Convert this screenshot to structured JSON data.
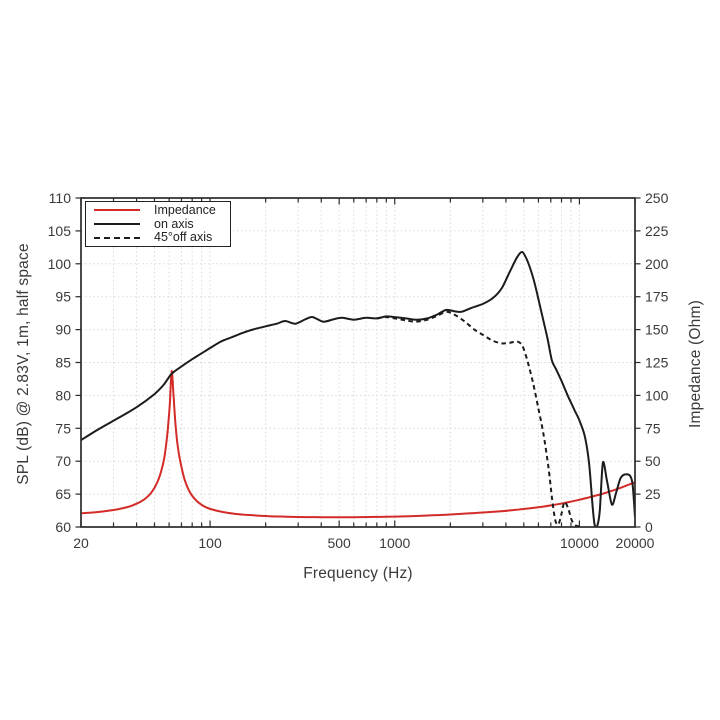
{
  "figure": {
    "background": "#ffffff",
    "axis_color": "#2b2b2b",
    "grid_color": "#dadada",
    "text_color": "#3a3a3a",
    "accent_red": "#d32b28",
    "curve_black": "#1c1c1c"
  },
  "legend": {
    "items": [
      {
        "label": "Impedance",
        "series": "impedance",
        "style": "solid",
        "color": "#d32b28"
      },
      {
        "label": "on axis",
        "series": "on_axis",
        "style": "solid",
        "color": "#1c1c1c"
      },
      {
        "label": "45°off axis",
        "series": "off_axis",
        "style": "dashed",
        "color": "#1c1c1c"
      }
    ]
  },
  "chart_data": {
    "type": "line",
    "title": "",
    "xlabel": "Frequency (Hz)",
    "ylabel_left": "SPL (dB) @ 2.83V, 1m, half space",
    "ylabel_right": "Impedance (Ohm)",
    "x_scale": "log",
    "x_range": [
      20,
      20000
    ],
    "x_major_ticks": [
      20,
      100,
      500,
      1000,
      10000,
      20000
    ],
    "x_minor_ticks": [
      30,
      40,
      50,
      60,
      70,
      80,
      90,
      200,
      300,
      400,
      600,
      700,
      800,
      900,
      2000,
      3000,
      4000,
      5000,
      6000,
      7000,
      8000,
      9000
    ],
    "y_left_range": [
      60,
      110
    ],
    "y_left_ticks": [
      60,
      65,
      70,
      75,
      80,
      85,
      90,
      95,
      100,
      105,
      110
    ],
    "y_right_range": [
      0,
      250
    ],
    "y_right_ticks": [
      0,
      25,
      50,
      75,
      100,
      125,
      150,
      175,
      200,
      225,
      250
    ],
    "grid": true,
    "legend_position": "top-left",
    "series": [
      {
        "name": "impedance",
        "axis": "right",
        "color": "#d32b28",
        "dash": "solid",
        "unit": "Ohm",
        "points": [
          [
            20,
            10.3
          ],
          [
            24,
            11.2
          ],
          [
            28,
            12.3
          ],
          [
            32,
            13.6
          ],
          [
            36,
            15.3
          ],
          [
            40,
            17.7
          ],
          [
            44,
            21.0
          ],
          [
            48,
            26.0
          ],
          [
            52,
            34.5
          ],
          [
            55,
            45.0
          ],
          [
            57,
            56.0
          ],
          [
            59,
            74.0
          ],
          [
            60.5,
            93.0
          ],
          [
            62,
            118.5
          ],
          [
            63.5,
            98.0
          ],
          [
            65,
            78.0
          ],
          [
            67,
            60.0
          ],
          [
            70,
            45.5
          ],
          [
            73,
            35.5
          ],
          [
            77,
            27.5
          ],
          [
            82,
            21.8
          ],
          [
            88,
            17.8
          ],
          [
            95,
            15.0
          ],
          [
            105,
            12.9
          ],
          [
            118,
            11.3
          ],
          [
            135,
            10.1
          ],
          [
            155,
            9.3
          ],
          [
            180,
            8.7
          ],
          [
            210,
            8.2
          ],
          [
            250,
            7.9
          ],
          [
            300,
            7.6
          ],
          [
            370,
            7.5
          ],
          [
            450,
            7.4
          ],
          [
            550,
            7.4
          ],
          [
            650,
            7.5
          ],
          [
            800,
            7.7
          ],
          [
            1000,
            7.9
          ],
          [
            1250,
            8.3
          ],
          [
            1600,
            8.9
          ],
          [
            2000,
            9.5
          ],
          [
            2500,
            10.3
          ],
          [
            3000,
            11.0
          ],
          [
            3600,
            11.8
          ],
          [
            4300,
            12.7
          ],
          [
            5100,
            13.8
          ],
          [
            6000,
            15.0
          ],
          [
            7000,
            16.4
          ],
          [
            8200,
            18.1
          ],
          [
            9500,
            20.0
          ],
          [
            11000,
            22.1
          ],
          [
            13000,
            24.8
          ],
          [
            15000,
            27.5
          ],
          [
            17000,
            30.2
          ],
          [
            20000,
            34.0
          ]
        ]
      },
      {
        "name": "on_axis",
        "axis": "left",
        "color": "#1c1c1c",
        "dash": "solid",
        "unit": "dB",
        "points": [
          [
            20,
            73.2
          ],
          [
            25,
            74.9
          ],
          [
            32,
            76.6
          ],
          [
            40,
            78.2
          ],
          [
            50,
            80.2
          ],
          [
            56,
            81.6
          ],
          [
            62,
            83.3
          ],
          [
            70,
            84.4
          ],
          [
            80,
            85.5
          ],
          [
            90,
            86.4
          ],
          [
            100,
            87.2
          ],
          [
            115,
            88.2
          ],
          [
            130,
            88.8
          ],
          [
            150,
            89.5
          ],
          [
            170,
            90.0
          ],
          [
            200,
            90.5
          ],
          [
            230,
            90.9
          ],
          [
            255,
            91.3
          ],
          [
            290,
            90.9
          ],
          [
            330,
            91.6
          ],
          [
            360,
            91.9
          ],
          [
            410,
            91.2
          ],
          [
            470,
            91.6
          ],
          [
            520,
            91.8
          ],
          [
            600,
            91.5
          ],
          [
            700,
            91.8
          ],
          [
            800,
            91.7
          ],
          [
            900,
            92.0
          ],
          [
            1000,
            91.9
          ],
          [
            1150,
            91.7
          ],
          [
            1300,
            91.5
          ],
          [
            1500,
            91.7
          ],
          [
            1700,
            92.3
          ],
          [
            1900,
            93.0
          ],
          [
            2100,
            92.8
          ],
          [
            2300,
            92.7
          ],
          [
            2600,
            93.3
          ],
          [
            3000,
            93.9
          ],
          [
            3400,
            94.8
          ],
          [
            3800,
            96.3
          ],
          [
            4200,
            98.8
          ],
          [
            4600,
            101.0
          ],
          [
            4900,
            101.8
          ],
          [
            5200,
            100.6
          ],
          [
            5600,
            98.0
          ],
          [
            5900,
            95.5
          ],
          [
            6300,
            92.0
          ],
          [
            6700,
            88.8
          ],
          [
            7100,
            85.3
          ],
          [
            7500,
            83.9
          ],
          [
            8000,
            82.2
          ],
          [
            8700,
            79.8
          ],
          [
            9400,
            77.8
          ],
          [
            10000,
            76.2
          ],
          [
            10700,
            73.8
          ],
          [
            11300,
            69.5
          ],
          [
            11800,
            63.0
          ],
          [
            12100,
            60.3
          ],
          [
            12500,
            60.2
          ],
          [
            12900,
            62.5
          ],
          [
            13400,
            69.8
          ],
          [
            14100,
            67.0
          ],
          [
            15000,
            63.4
          ],
          [
            15800,
            65.2
          ],
          [
            16700,
            67.4
          ],
          [
            17700,
            68.0
          ],
          [
            18800,
            67.8
          ],
          [
            19400,
            66.5
          ],
          [
            20000,
            61.5
          ]
        ]
      },
      {
        "name": "off_axis",
        "axis": "left",
        "color": "#1c1c1c",
        "dash": "dashed",
        "unit": "dB",
        "points": [
          [
            800,
            91.7
          ],
          [
            900,
            91.9
          ],
          [
            1000,
            91.7
          ],
          [
            1150,
            91.4
          ],
          [
            1300,
            91.2
          ],
          [
            1500,
            91.5
          ],
          [
            1700,
            92.1
          ],
          [
            1900,
            92.7
          ],
          [
            2100,
            92.3
          ],
          [
            2400,
            91.2
          ],
          [
            2700,
            90.0
          ],
          [
            3000,
            89.2
          ],
          [
            3400,
            88.3
          ],
          [
            3800,
            87.9
          ],
          [
            4200,
            88.0
          ],
          [
            4600,
            88.2
          ],
          [
            4900,
            87.6
          ],
          [
            5200,
            85.5
          ],
          [
            5600,
            82.0
          ],
          [
            6000,
            78.0
          ],
          [
            6400,
            74.0
          ],
          [
            6800,
            69.0
          ],
          [
            7100,
            64.5
          ],
          [
            7400,
            61.0
          ],
          [
            7700,
            60.4
          ],
          [
            8000,
            62.0
          ],
          [
            8300,
            63.8
          ],
          [
            8700,
            62.8
          ],
          [
            9100,
            61.0
          ],
          [
            9600,
            60.2
          ],
          [
            10000,
            60.1
          ]
        ]
      }
    ]
  }
}
